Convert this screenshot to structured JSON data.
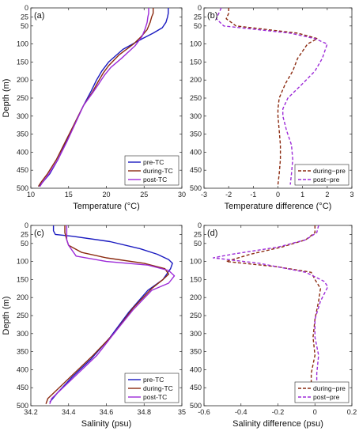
{
  "chart_data": [
    {
      "panel": "(a)",
      "type": "line",
      "xlabel": "Temperature (°C)",
      "ylabel": "Depth (m)",
      "xlim": [
        10,
        30
      ],
      "ylim": [
        500,
        0
      ],
      "xticks": [
        10,
        15,
        20,
        25,
        30
      ],
      "yticks": [
        0,
        25,
        50,
        100,
        150,
        200,
        250,
        300,
        350,
        400,
        450,
        500
      ],
      "legend": "bottom-right",
      "series": [
        {
          "name": "pre-TC",
          "color": "#1a1ac0",
          "dash": false,
          "x": [
            28.2,
            28.2,
            28.1,
            27.9,
            27.4,
            26.2,
            24.8,
            22.2,
            20.3,
            19.4,
            18.7,
            18.0,
            17.0,
            15.8,
            14.7,
            13.6,
            12.5,
            11.5,
            11.1
          ],
          "y": [
            0,
            15,
            25,
            40,
            55,
            70,
            85,
            115,
            150,
            175,
            200,
            230,
            270,
            320,
            370,
            420,
            460,
            485,
            495
          ]
        },
        {
          "name": "during-TC",
          "color": "#8b2a10",
          "dash": false,
          "x": [
            26.2,
            26.2,
            26.0,
            25.8,
            25.4,
            24.6,
            23.6,
            21.7,
            20.3,
            19.6,
            18.9,
            18.1,
            17.0,
            15.8,
            14.6,
            13.4,
            12.2,
            11.3,
            11.0
          ],
          "y": [
            0,
            15,
            25,
            40,
            60,
            80,
            100,
            130,
            160,
            180,
            205,
            235,
            270,
            320,
            370,
            420,
            460,
            485,
            495
          ]
        },
        {
          "name": "post-TC",
          "color": "#9d2bd8",
          "dash": false,
          "x": [
            25.6,
            25.6,
            25.5,
            25.4,
            25.1,
            24.7,
            23.8,
            22.0,
            20.6,
            19.8,
            19.0,
            18.2,
            17.0,
            15.9,
            14.8,
            13.6,
            12.4,
            11.5,
            11.2
          ],
          "y": [
            0,
            15,
            25,
            40,
            60,
            80,
            105,
            140,
            165,
            185,
            210,
            235,
            270,
            320,
            370,
            420,
            460,
            485,
            495
          ]
        }
      ]
    },
    {
      "panel": "(b)",
      "type": "line",
      "xlabel": "Temperature difference (°C)",
      "ylabel": "",
      "xlim": [
        -3,
        3
      ],
      "ylim": [
        500,
        0
      ],
      "xticks": [
        -3,
        -2,
        -1,
        0,
        1,
        2,
        3
      ],
      "yticks": [
        0,
        25,
        50,
        100,
        150,
        200,
        250,
        300,
        350,
        400,
        450,
        500
      ],
      "legend": "bottom-right",
      "series": [
        {
          "name": "during−pre",
          "color": "#8b2a10",
          "dash": true,
          "x": [
            -2.0,
            -2.0,
            -2.1,
            -1.7,
            0.8,
            1.6,
            1.2,
            0.8,
            0.6,
            0.3,
            0.05,
            0.0,
            0.0,
            0.05,
            0.1,
            0.1,
            0.05,
            0.0
          ],
          "y": [
            0,
            15,
            30,
            50,
            70,
            85,
            100,
            140,
            175,
            210,
            250,
            280,
            300,
            340,
            380,
            420,
            460,
            490
          ]
        },
        {
          "name": "post−pre",
          "color": "#9d2bd8",
          "dash": true,
          "x": [
            -2.3,
            -2.4,
            -2.5,
            -2.2,
            0.5,
            1.5,
            2.0,
            1.8,
            1.5,
            1.0,
            0.4,
            0.2,
            0.2,
            0.35,
            0.55,
            0.6,
            0.55,
            0.5
          ],
          "y": [
            0,
            15,
            30,
            50,
            70,
            85,
            100,
            140,
            175,
            210,
            250,
            280,
            300,
            340,
            380,
            420,
            460,
            490
          ]
        }
      ]
    },
    {
      "panel": "(c)",
      "type": "line",
      "xlabel": "Salinity (psu)",
      "ylabel": "Depth (m)",
      "xlim": [
        34.2,
        35
      ],
      "ylim": [
        500,
        0
      ],
      "xticks": [
        34.2,
        34.4,
        34.6,
        34.8,
        35
      ],
      "yticks": [
        0,
        25,
        50,
        100,
        150,
        200,
        250,
        300,
        350,
        400,
        450,
        500
      ],
      "legend": "bottom-right",
      "series": [
        {
          "name": "pre-TC",
          "color": "#1a1ac0",
          "dash": false,
          "x": [
            34.32,
            34.32,
            34.33,
            34.42,
            34.62,
            34.78,
            34.87,
            34.93,
            34.95,
            34.94,
            34.9,
            34.82,
            34.72,
            34.62,
            34.52,
            34.42,
            34.34,
            34.3
          ],
          "y": [
            0,
            15,
            25,
            30,
            45,
            65,
            80,
            95,
            105,
            120,
            150,
            180,
            240,
            310,
            370,
            420,
            465,
            490
          ]
        },
        {
          "name": "during-TC",
          "color": "#8b2a10",
          "dash": false,
          "x": [
            34.38,
            34.38,
            34.39,
            34.4,
            34.47,
            34.6,
            34.8,
            34.91,
            34.93,
            34.9,
            34.84,
            34.74,
            34.64,
            34.53,
            34.43,
            34.35,
            34.29,
            34.28
          ],
          "y": [
            0,
            20,
            40,
            55,
            75,
            90,
            105,
            120,
            135,
            150,
            175,
            230,
            300,
            360,
            410,
            450,
            480,
            495
          ]
        },
        {
          "name": "post-TC",
          "color": "#9d2bd8",
          "dash": false,
          "x": [
            34.39,
            34.39,
            34.39,
            34.4,
            34.44,
            34.6,
            34.82,
            34.93,
            34.96,
            34.93,
            34.84,
            34.74,
            34.64,
            34.55,
            34.45,
            34.37,
            34.31,
            34.3
          ],
          "y": [
            0,
            20,
            40,
            55,
            85,
            100,
            110,
            125,
            140,
            160,
            180,
            235,
            300,
            360,
            410,
            450,
            480,
            495
          ]
        }
      ]
    },
    {
      "panel": "(d)",
      "type": "line",
      "xlabel": "Salinity difference (psu)",
      "ylabel": "",
      "xlim": [
        -0.6,
        0.2
      ],
      "ylim": [
        500,
        0
      ],
      "xticks": [
        -0.6,
        -0.4,
        -0.2,
        0,
        0.2
      ],
      "yticks": [
        0,
        25,
        50,
        100,
        150,
        200,
        250,
        300,
        350,
        400,
        450,
        500
      ],
      "legend": "bottom-right",
      "series": [
        {
          "name": "during−pre",
          "color": "#8b2a10",
          "dash": true,
          "x": [
            0.0,
            0.0,
            -0.05,
            -0.18,
            -0.35,
            -0.48,
            -0.2,
            -0.02,
            0.0,
            0.03,
            0.02,
            0.0,
            -0.01,
            0.0,
            -0.02,
            -0.02,
            -0.02
          ],
          "y": [
            0,
            20,
            40,
            60,
            80,
            100,
            115,
            130,
            150,
            175,
            210,
            260,
            310,
            360,
            410,
            460,
            490
          ]
        },
        {
          "name": "post−pre",
          "color": "#9d2bd8",
          "dash": true,
          "x": [
            0.02,
            0.01,
            -0.05,
            -0.2,
            -0.45,
            -0.55,
            -0.3,
            -0.05,
            0.05,
            0.07,
            0.03,
            0.0,
            0.0,
            0.02,
            0.01,
            0.01,
            0.0
          ],
          "y": [
            0,
            20,
            40,
            60,
            80,
            90,
            105,
            130,
            155,
            170,
            210,
            260,
            310,
            360,
            410,
            460,
            490
          ]
        }
      ]
    }
  ]
}
